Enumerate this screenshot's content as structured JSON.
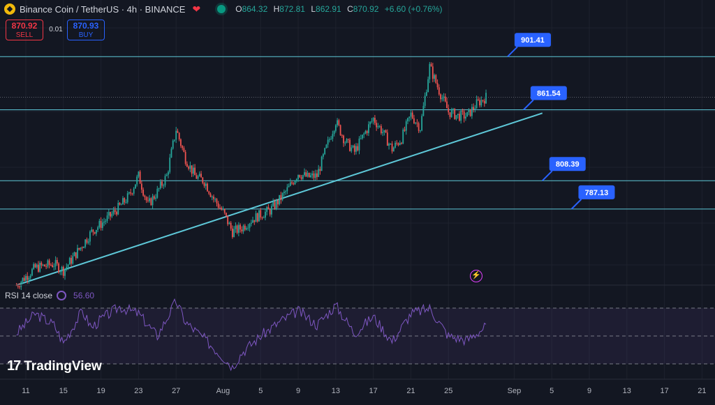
{
  "header": {
    "title": "Binance Coin / TetherUS · 4h · BINANCE",
    "ohlc": {
      "o_label": "O",
      "o": "864.32",
      "h_label": "H",
      "h": "872.81",
      "l_label": "L",
      "l": "862.91",
      "c_label": "C",
      "c": "870.92",
      "change": "+6.60 (+0.76%)"
    }
  },
  "trade": {
    "sell_price": "870.92",
    "sell_label": "SELL",
    "spread": "0.01",
    "buy_price": "870.93",
    "buy_label": "BUY"
  },
  "rsi": {
    "label": "RSI 14 close",
    "value": "56.60"
  },
  "branding": {
    "name": "TradingView"
  },
  "colors": {
    "background": "#131722",
    "up": "#26a69a",
    "down": "#ef5350",
    "level_line": "#5ec8d8",
    "rsi": "#7e57c2",
    "label_box": "#2962ff"
  },
  "chart_data": {
    "type": "candlestick",
    "symbol": "Binance Coin / TetherUS",
    "interval": "4h",
    "exchange": "BINANCE",
    "x_tick_labels": [
      "11",
      "15",
      "19",
      "23",
      "27",
      "Aug",
      "5",
      "9",
      "13",
      "17",
      "21",
      "25",
      "Sep",
      "5",
      "9",
      "13",
      "17",
      "21"
    ],
    "price_range": [
      730,
      905
    ],
    "last": {
      "open": 864.32,
      "high": 872.81,
      "low": 862.91,
      "close": 870.92
    },
    "horizontal_levels": [
      901.41,
      861.54,
      808.39,
      787.13
    ],
    "trendline": [
      {
        "date": "Jul 10",
        "price": 730
      },
      {
        "date": "Sep 4",
        "price": 859
      }
    ],
    "close_path": [
      {
        "date": "Jul 10",
        "price": 730
      },
      {
        "date": "Jul 12",
        "price": 743
      },
      {
        "date": "Jul 14",
        "price": 746
      },
      {
        "date": "Jul 15",
        "price": 741
      },
      {
        "date": "Jul 17",
        "price": 760
      },
      {
        "date": "Jul 18",
        "price": 770
      },
      {
        "date": "Jul 19",
        "price": 776
      },
      {
        "date": "Jul 20",
        "price": 782
      },
      {
        "date": "Jul 21",
        "price": 789
      },
      {
        "date": "Jul 22",
        "price": 797
      },
      {
        "date": "Jul 23",
        "price": 812
      },
      {
        "date": "Jul 24",
        "price": 790
      },
      {
        "date": "Jul 25",
        "price": 800
      },
      {
        "date": "Jul 26",
        "price": 812
      },
      {
        "date": "Jul 27",
        "price": 847
      },
      {
        "date": "Jul 28",
        "price": 825
      },
      {
        "date": "Jul 29",
        "price": 812
      },
      {
        "date": "Jul 30",
        "price": 808
      },
      {
        "date": "Jul 31",
        "price": 795
      },
      {
        "date": "Aug 1",
        "price": 785
      },
      {
        "date": "Aug 2",
        "price": 770
      },
      {
        "date": "Aug 3",
        "price": 773
      },
      {
        "date": "Aug 4",
        "price": 779
      },
      {
        "date": "Aug 5",
        "price": 783
      },
      {
        "date": "Aug 6",
        "price": 786
      },
      {
        "date": "Aug 7",
        "price": 794
      },
      {
        "date": "Aug 8",
        "price": 803
      },
      {
        "date": "Aug 9",
        "price": 814
      },
      {
        "date": "Aug 10",
        "price": 811
      },
      {
        "date": "Aug 11",
        "price": 812
      },
      {
        "date": "Aug 12",
        "price": 833
      },
      {
        "date": "Aug 13",
        "price": 853
      },
      {
        "date": "Aug 14",
        "price": 838
      },
      {
        "date": "Aug 15",
        "price": 830
      },
      {
        "date": "Aug 16",
        "price": 843
      },
      {
        "date": "Aug 17",
        "price": 855
      },
      {
        "date": "Aug 18",
        "price": 845
      },
      {
        "date": "Aug 19",
        "price": 832
      },
      {
        "date": "Aug 20",
        "price": 840
      },
      {
        "date": "Aug 21",
        "price": 858
      },
      {
        "date": "Aug 22",
        "price": 848
      },
      {
        "date": "Aug 23",
        "price": 894
      },
      {
        "date": "Aug 24",
        "price": 876
      },
      {
        "date": "Aug 25",
        "price": 860
      },
      {
        "date": "Aug 26",
        "price": 857
      },
      {
        "date": "Aug 27",
        "price": 857
      },
      {
        "date": "Aug 28",
        "price": 866
      },
      {
        "date": "Aug 29",
        "price": 871
      }
    ],
    "rsi_series": {
      "name": "RSI 14 close",
      "levels": [
        70,
        50,
        30
      ],
      "points": [
        {
          "date": "Jul 10",
          "value": 52
        },
        {
          "date": "Jul 12",
          "value": 66
        },
        {
          "date": "Jul 14",
          "value": 58
        },
        {
          "date": "Jul 15",
          "value": 45
        },
        {
          "date": "Jul 17",
          "value": 68
        },
        {
          "date": "Jul 18",
          "value": 56
        },
        {
          "date": "Jul 19",
          "value": 62
        },
        {
          "date": "Jul 21",
          "value": 71
        },
        {
          "date": "Jul 23",
          "value": 66
        },
        {
          "date": "Jul 25",
          "value": 50
        },
        {
          "date": "Jul 27",
          "value": 75
        },
        {
          "date": "Jul 28",
          "value": 60
        },
        {
          "date": "Jul 30",
          "value": 48
        },
        {
          "date": "Aug 1",
          "value": 35
        },
        {
          "date": "Aug 2",
          "value": 28
        },
        {
          "date": "Aug 3",
          "value": 38
        },
        {
          "date": "Aug 5",
          "value": 50
        },
        {
          "date": "Aug 7",
          "value": 60
        },
        {
          "date": "Aug 9",
          "value": 68
        },
        {
          "date": "Aug 11",
          "value": 58
        },
        {
          "date": "Aug 13",
          "value": 72
        },
        {
          "date": "Aug 15",
          "value": 52
        },
        {
          "date": "Aug 17",
          "value": 64
        },
        {
          "date": "Aug 19",
          "value": 46
        },
        {
          "date": "Aug 21",
          "value": 66
        },
        {
          "date": "Aug 23",
          "value": 70
        },
        {
          "date": "Aug 25",
          "value": 50
        },
        {
          "date": "Aug 27",
          "value": 47
        },
        {
          "date": "Aug 29",
          "value": 57
        }
      ]
    },
    "grid": true
  }
}
